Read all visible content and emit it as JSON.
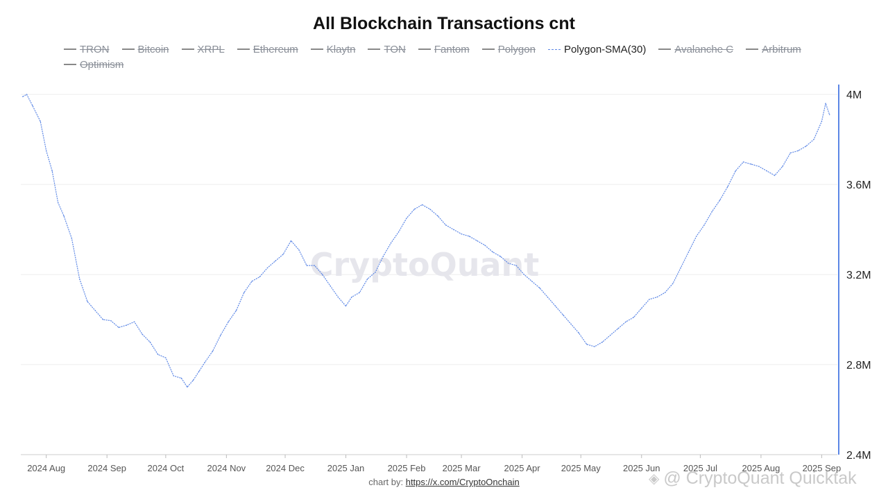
{
  "chart_data": {
    "type": "line",
    "title": "All Blockchain Transactions cnt",
    "legend": [
      {
        "name": "TRON",
        "visible": false
      },
      {
        "name": "Bitcoin",
        "visible": false
      },
      {
        "name": "XRPL",
        "visible": false
      },
      {
        "name": "Ethereum",
        "visible": false
      },
      {
        "name": "Klaytn",
        "visible": false
      },
      {
        "name": "TON",
        "visible": false
      },
      {
        "name": "Fantom",
        "visible": false
      },
      {
        "name": "Polygon",
        "visible": false
      },
      {
        "name": "Polygon-SMA(30)",
        "visible": true
      },
      {
        "name": "Avalanche C",
        "visible": false
      },
      {
        "name": "Arbitrum",
        "visible": false
      },
      {
        "name": "Optimism",
        "visible": false
      }
    ],
    "legend_position": "top",
    "x_ticks": [
      "2024 Aug",
      "2024 Sep",
      "2024 Oct",
      "2024 Nov",
      "2024 Dec",
      "2025 Jan",
      "2025 Feb",
      "2025 Mar",
      "2025 Apr",
      "2025 May",
      "2025 Jun",
      "2025 Jul",
      "2025 Aug",
      "2025 Sep"
    ],
    "y_ticks": [
      "2.4M",
      "2.8M",
      "3.2M",
      "3.6M",
      "4M"
    ],
    "y_tick_values": [
      2400000,
      2800000,
      3200000,
      3600000,
      4000000
    ],
    "ylim": [
      2400000,
      4050000
    ],
    "y_axis_side": "right",
    "grid": true,
    "series": [
      {
        "name": "Polygon-SMA(30)",
        "color": "#5b86e5",
        "x": [
          "2024-07-20",
          "2024-07-22",
          "2024-07-25",
          "2024-07-29",
          "2024-08-01",
          "2024-08-04",
          "2024-08-07",
          "2024-08-10",
          "2024-08-14",
          "2024-08-18",
          "2024-08-22",
          "2024-08-26",
          "2024-08-30",
          "2024-09-03",
          "2024-09-07",
          "2024-09-11",
          "2024-09-15",
          "2024-09-19",
          "2024-09-23",
          "2024-09-27",
          "2024-10-01",
          "2024-10-05",
          "2024-10-09",
          "2024-10-12",
          "2024-10-15",
          "2024-10-18",
          "2024-10-21",
          "2024-10-25",
          "2024-10-29",
          "2024-11-02",
          "2024-11-06",
          "2024-11-10",
          "2024-11-14",
          "2024-11-18",
          "2024-11-22",
          "2024-11-26",
          "2024-11-30",
          "2024-12-04",
          "2024-12-08",
          "2024-12-12",
          "2024-12-16",
          "2024-12-20",
          "2024-12-24",
          "2024-12-28",
          "2025-01-01",
          "2025-01-04",
          "2025-01-08",
          "2025-01-12",
          "2025-01-16",
          "2025-01-20",
          "2025-01-24",
          "2025-01-28",
          "2025-02-01",
          "2025-02-05",
          "2025-02-09",
          "2025-02-13",
          "2025-02-17",
          "2025-02-21",
          "2025-02-25",
          "2025-03-01",
          "2025-03-05",
          "2025-03-09",
          "2025-03-13",
          "2025-03-17",
          "2025-03-21",
          "2025-03-25",
          "2025-03-29",
          "2025-04-02",
          "2025-04-06",
          "2025-04-10",
          "2025-04-14",
          "2025-04-18",
          "2025-04-22",
          "2025-04-26",
          "2025-04-30",
          "2025-05-04",
          "2025-05-08",
          "2025-05-12",
          "2025-05-16",
          "2025-05-20",
          "2025-05-24",
          "2025-05-28",
          "2025-06-01",
          "2025-06-05",
          "2025-06-09",
          "2025-06-13",
          "2025-06-17",
          "2025-06-21",
          "2025-06-25",
          "2025-06-29",
          "2025-07-03",
          "2025-07-07",
          "2025-07-11",
          "2025-07-15",
          "2025-07-19",
          "2025-07-23",
          "2025-07-27",
          "2025-07-31",
          "2025-08-04",
          "2025-08-08",
          "2025-08-12",
          "2025-08-16",
          "2025-08-20",
          "2025-08-24",
          "2025-08-28",
          "2025-09-01",
          "2025-09-03",
          "2025-09-05"
        ],
        "values": [
          3990000,
          4000000,
          3950000,
          3880000,
          3750000,
          3660000,
          3520000,
          3460000,
          3360000,
          3180000,
          3080000,
          3040000,
          3000000,
          2995000,
          2965000,
          2975000,
          2990000,
          2935000,
          2900000,
          2845000,
          2830000,
          2750000,
          2740000,
          2700000,
          2730000,
          2770000,
          2810000,
          2860000,
          2930000,
          2990000,
          3040000,
          3120000,
          3170000,
          3190000,
          3230000,
          3260000,
          3290000,
          3350000,
          3310000,
          3240000,
          3240000,
          3200000,
          3150000,
          3100000,
          3060000,
          3100000,
          3120000,
          3180000,
          3210000,
          3280000,
          3340000,
          3390000,
          3450000,
          3490000,
          3510000,
          3490000,
          3460000,
          3420000,
          3400000,
          3380000,
          3370000,
          3350000,
          3330000,
          3300000,
          3280000,
          3250000,
          3240000,
          3200000,
          3170000,
          3140000,
          3100000,
          3060000,
          3020000,
          2980000,
          2940000,
          2890000,
          2880000,
          2900000,
          2930000,
          2960000,
          2990000,
          3010000,
          3050000,
          3090000,
          3100000,
          3120000,
          3160000,
          3230000,
          3300000,
          3370000,
          3420000,
          3480000,
          3530000,
          3590000,
          3660000,
          3700000,
          3690000,
          3680000,
          3660000,
          3640000,
          3680000,
          3740000,
          3750000,
          3770000,
          3800000,
          3880000,
          3960000,
          3910000
        ]
      }
    ]
  },
  "credit": {
    "prefix": "chart by: ",
    "link": "https://x.com/CryptoOnchain"
  },
  "watermarks": {
    "center": "CryptoQuant",
    "corner": "@ CryptoQuant Quicktak"
  },
  "colors": {
    "line": "#5b86e5",
    "y_axis": "#5b86e5",
    "legend_hidden": "#8a8f98"
  }
}
